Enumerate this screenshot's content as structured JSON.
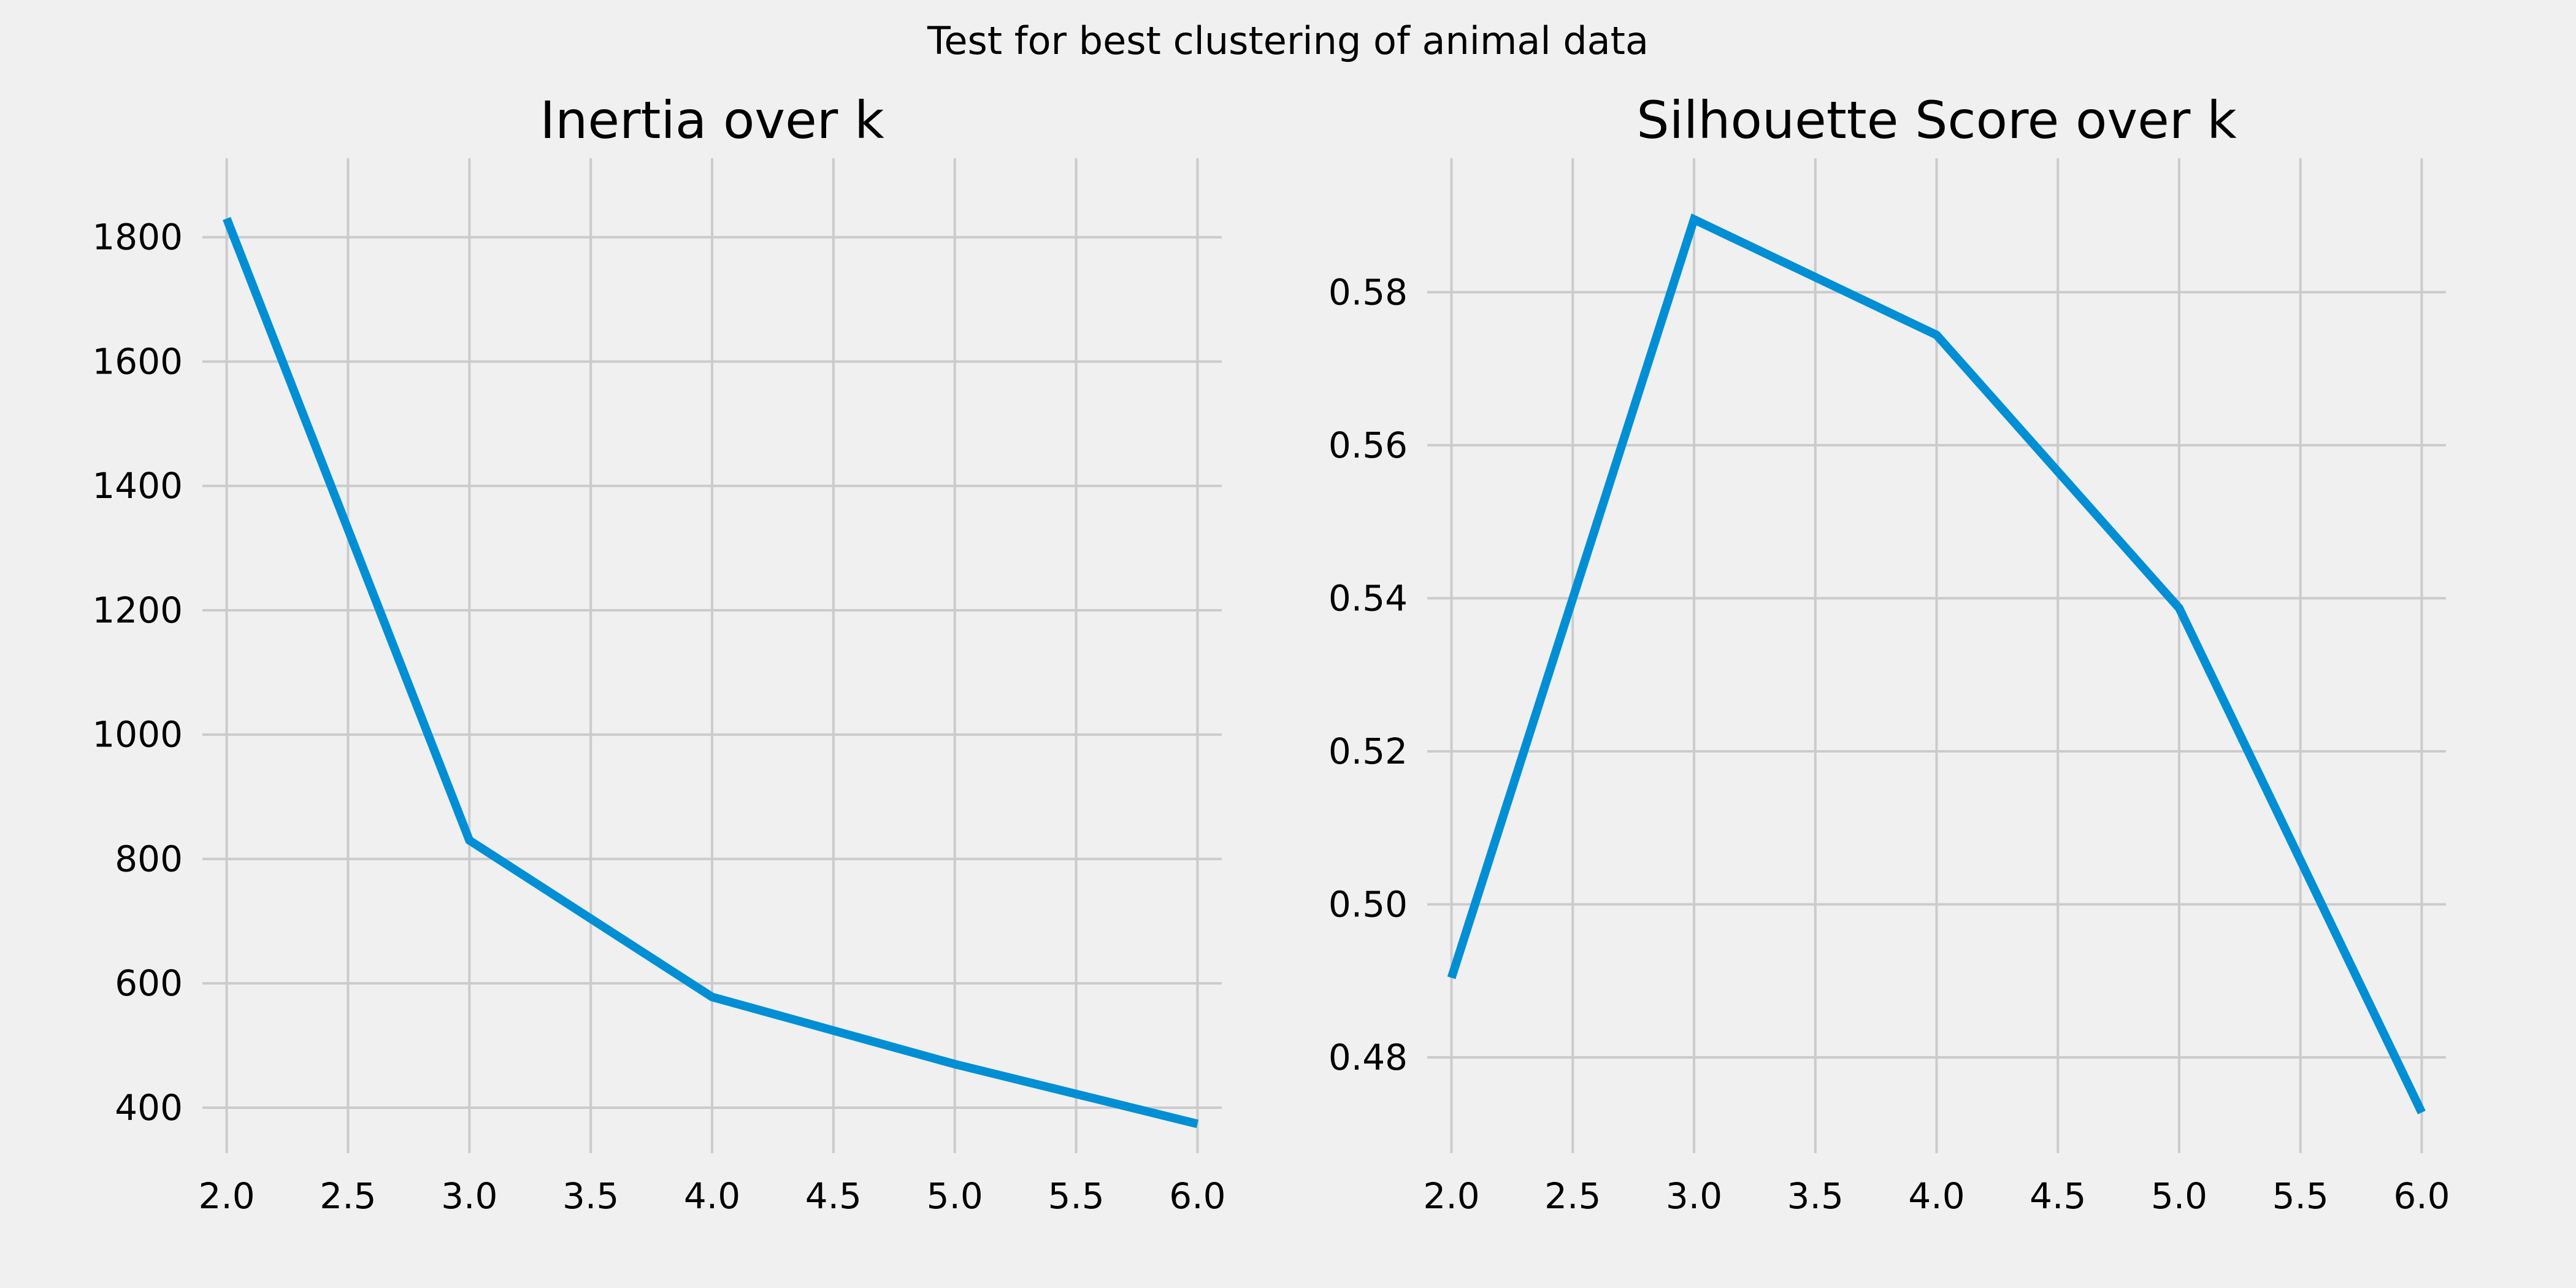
{
  "figure": {
    "suptitle": "Test for best clustering of animal data",
    "background_color": "#f0f0f0",
    "grid_color": "#cbcbcb",
    "line_color": "#008fd5"
  },
  "chart_data": [
    {
      "type": "line",
      "title": "Inertia over k",
      "xlabel": "",
      "ylabel": "",
      "x": [
        2,
        3,
        4,
        5,
        6
      ],
      "series": [
        {
          "values": [
            1830,
            830,
            578,
            470,
            374
          ]
        }
      ],
      "xlim": [
        1.9,
        6.1
      ],
      "ylim": [
        327,
        1927
      ],
      "xticks": [
        2.0,
        2.5,
        3.0,
        3.5,
        4.0,
        4.5,
        5.0,
        5.5,
        6.0
      ],
      "xtick_labels": [
        "2.0",
        "2.5",
        "3.0",
        "3.5",
        "4.0",
        "4.5",
        "5.0",
        "5.5",
        "6.0"
      ],
      "yticks": [
        400,
        600,
        800,
        1000,
        1200,
        1400,
        1600,
        1800
      ],
      "ytick_labels": [
        "400",
        "600",
        "800",
        "1000",
        "1200",
        "1400",
        "1600",
        "1800"
      ],
      "grid": true,
      "legend": "none"
    },
    {
      "type": "line",
      "title": "Silhouette Score over k",
      "xlabel": "",
      "ylabel": "",
      "x": [
        2,
        3,
        4,
        5,
        6
      ],
      "series": [
        {
          "values": [
            0.4904,
            0.5895,
            0.5744,
            0.5387,
            0.4728
          ]
        }
      ],
      "xlim": [
        1.9,
        6.1
      ],
      "ylim": [
        0.4675,
        0.5975
      ],
      "xticks": [
        2.0,
        2.5,
        3.0,
        3.5,
        4.0,
        4.5,
        5.0,
        5.5,
        6.0
      ],
      "xtick_labels": [
        "2.0",
        "2.5",
        "3.0",
        "3.5",
        "4.0",
        "4.5",
        "5.0",
        "5.5",
        "6.0"
      ],
      "yticks": [
        0.48,
        0.5,
        0.52,
        0.54,
        0.56,
        0.58
      ],
      "ytick_labels": [
        "0.48",
        "0.50",
        "0.52",
        "0.54",
        "0.56",
        "0.58"
      ],
      "grid": true,
      "legend": "none"
    }
  ]
}
